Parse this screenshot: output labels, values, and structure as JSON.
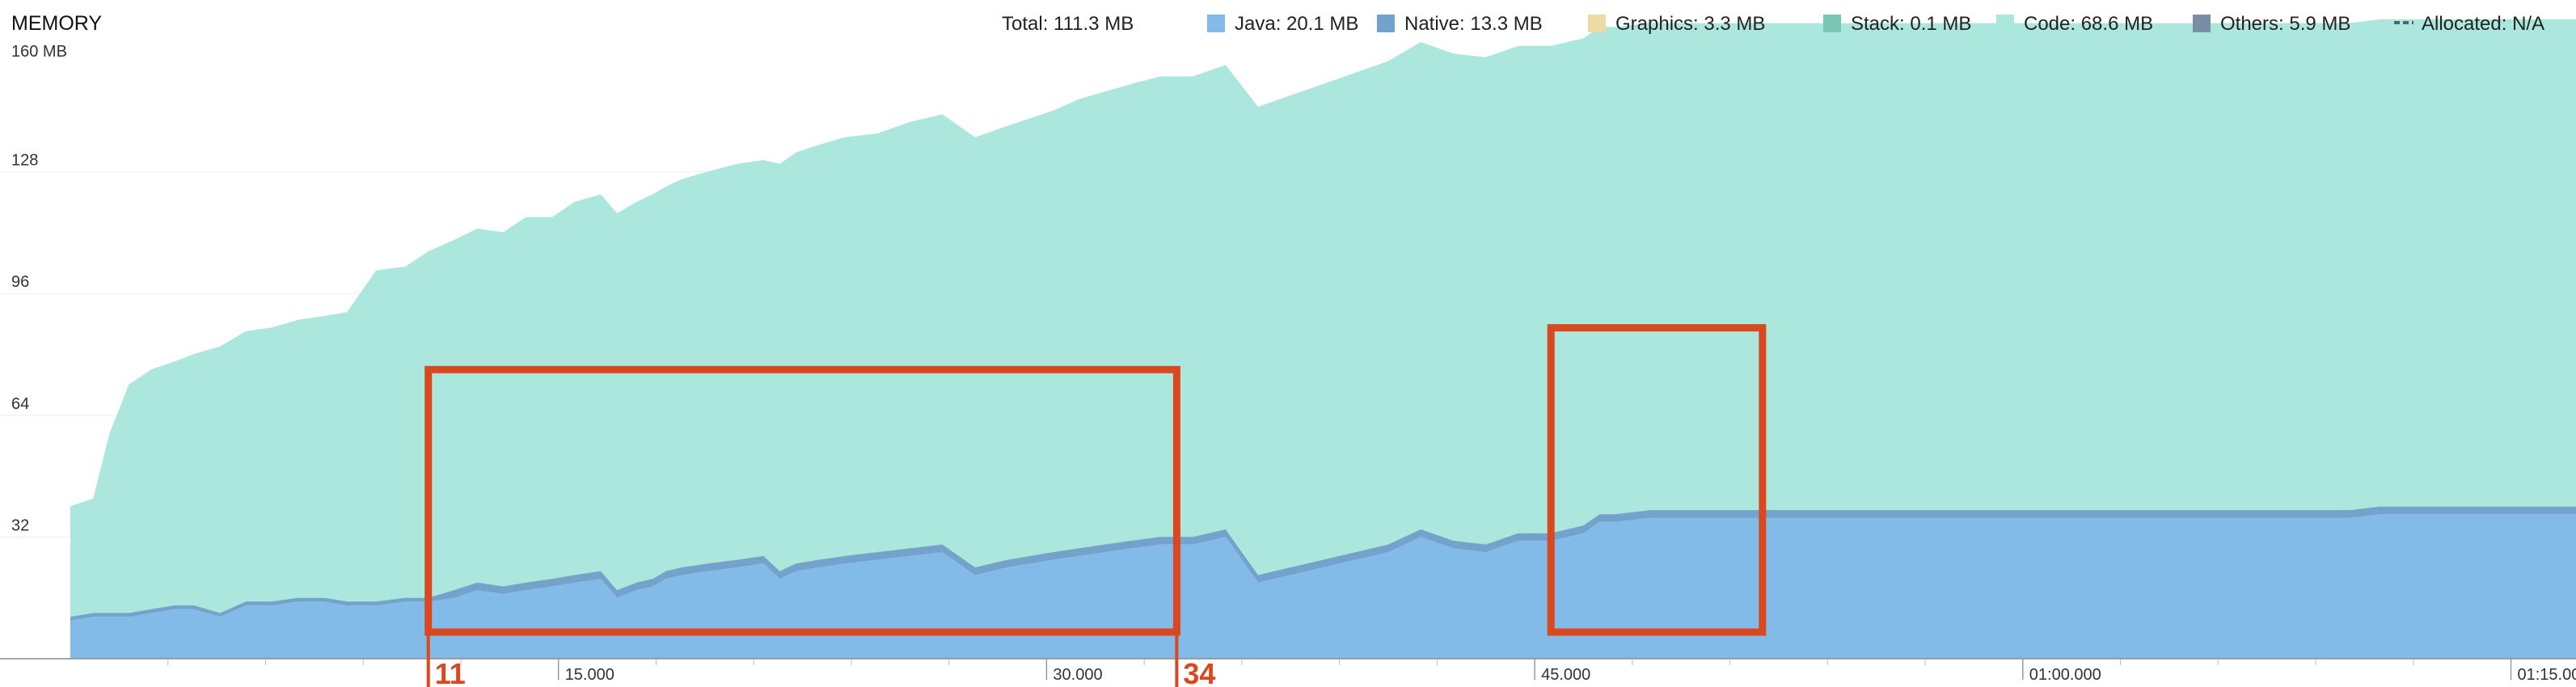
{
  "chart_data": {
    "type": "area",
    "title": "MEMORY",
    "legend_position": "top-right",
    "legend": {
      "total": "Total: 111.3 MB",
      "items": [
        {
          "key": "java",
          "label": "Java: 20.1 MB",
          "color": "#82bbe8",
          "swatch": "box"
        },
        {
          "key": "native",
          "label": "Native: 13.3 MB",
          "color": "#73a2cd",
          "swatch": "box"
        },
        {
          "key": "graphics",
          "label": "Graphics: 3.3 MB",
          "color": "#ecdba5",
          "swatch": "box"
        },
        {
          "key": "stack",
          "label": "Stack: 0.1 MB",
          "color": "#7bc5b3",
          "swatch": "box"
        },
        {
          "key": "code",
          "label": "Code: 68.6 MB",
          "color": "#abe7dc",
          "swatch": "box"
        },
        {
          "key": "others",
          "label": "Others: 5.9 MB",
          "color": "#7a8ea3",
          "swatch": "box"
        },
        {
          "key": "allocated",
          "label": "Allocated: N/A",
          "color": "#4c6478",
          "swatch": "dash"
        }
      ]
    },
    "y_unit_label": "160 MB",
    "y_ticks": [
      {
        "value": 32,
        "label": "32"
      },
      {
        "value": 64,
        "label": "64"
      },
      {
        "value": 96,
        "label": "96"
      },
      {
        "value": 128,
        "label": "128"
      }
    ],
    "ylim": [
      0,
      160
    ],
    "xlim": [
      0,
      77
    ],
    "x_ticks": [
      {
        "value": 15,
        "label": "15.000"
      },
      {
        "value": 30,
        "label": "30.000"
      },
      {
        "value": 45,
        "label": "45.000"
      },
      {
        "value": 60,
        "label": "01:00.000"
      },
      {
        "value": 75,
        "label": "01:15.000"
      }
    ],
    "x_minor_ticks": [
      3,
      6,
      9,
      12,
      18,
      21,
      24,
      27,
      33,
      36,
      39,
      42,
      48,
      51,
      54,
      57,
      63,
      66,
      69,
      72
    ],
    "markers": [
      {
        "x": 11,
        "label": "11"
      },
      {
        "x": 34,
        "label": "34"
      }
    ],
    "highlight_boxes": [
      {
        "x0": 11,
        "x1": 34,
        "y0": 7,
        "y1": 76
      },
      {
        "x0": 45.5,
        "x1": 52,
        "y0": 7,
        "y1": 87
      }
    ],
    "x": [
      0,
      0.7,
      1.2,
      1.8,
      2.5,
      3.2,
      3.8,
      4.6,
      5.4,
      6.2,
      7,
      7.8,
      8.5,
      9.4,
      10.3,
      11,
      11.8,
      12.5,
      13.3,
      14,
      14.8,
      15.5,
      16.3,
      16.8,
      17.4,
      17.9,
      18.3,
      18.8,
      19.6,
      20.5,
      21.3,
      21.8,
      22.3,
      23,
      23.8,
      24.8,
      25.8,
      26.8,
      27.8,
      28.8,
      29.5,
      30.2,
      31,
      31.8,
      32.6,
      33.5,
      34.5,
      35.5,
      36.5,
      37.5,
      38.5,
      39.5,
      40.5,
      41.5,
      42.5,
      43.5,
      44.5,
      45.5,
      46.5,
      47,
      47.5,
      48.5,
      49.5,
      50.5,
      51.2,
      51.6,
      52.5,
      53.5,
      54.5,
      55.5,
      56.5,
      57.5,
      58.5,
      59.5,
      60.2,
      60.5,
      61.2,
      62,
      63,
      64,
      65,
      66,
      67,
      68,
      68.4,
      68.8,
      69.3,
      70,
      71,
      72,
      73,
      74,
      75,
      76,
      77
    ],
    "series": [
      {
        "name": "Java",
        "key": "java",
        "color": "#82bbe8",
        "values": [
          10,
          11,
          11,
          11,
          12,
          13,
          13,
          11,
          14,
          14,
          15,
          15,
          14,
          14,
          15,
          15,
          16,
          18,
          17,
          18,
          19,
          20,
          21,
          16,
          18,
          19,
          21,
          22,
          23,
          24,
          25,
          21,
          23,
          24,
          25,
          26,
          27,
          28,
          22,
          24,
          25,
          26,
          27,
          28,
          29,
          30,
          30,
          32,
          20,
          22,
          24,
          26,
          28,
          32,
          29,
          28,
          31,
          31,
          33,
          36,
          36,
          37,
          37,
          37,
          37,
          37,
          37,
          37,
          37,
          37,
          37,
          37,
          37,
          37,
          37,
          37,
          37,
          37,
          37,
          37,
          37,
          37,
          37,
          37,
          37,
          37,
          37,
          37,
          38,
          38,
          38,
          38,
          38,
          38,
          38
        ]
      },
      {
        "name": "Native",
        "key": "native",
        "color": "#73a2cd",
        "values": [
          1,
          1,
          1,
          1,
          1,
          1,
          1,
          1,
          1,
          1,
          1,
          1,
          1,
          1,
          1,
          1,
          2,
          2,
          2,
          2,
          2,
          2,
          2,
          2,
          2,
          2,
          2,
          2,
          2,
          2,
          2,
          2,
          2,
          2,
          2,
          2,
          2,
          2,
          2,
          2,
          2,
          2,
          2,
          2,
          2,
          2,
          2,
          2,
          2,
          2,
          2,
          2,
          2,
          2,
          2,
          2,
          2,
          2,
          2,
          2,
          2,
          2,
          2,
          2,
          2,
          2,
          2,
          2,
          2,
          2,
          2,
          2,
          2,
          2,
          2,
          2,
          2,
          2,
          2,
          2,
          2,
          2,
          2,
          2,
          2,
          2,
          2,
          2,
          2,
          2,
          2,
          2,
          2,
          2,
          2
        ]
      },
      {
        "name": "Graphics",
        "key": "graphics",
        "color": "#ecdba5",
        "values": [
          0,
          0,
          0,
          0,
          0,
          0,
          0,
          0,
          0,
          0,
          0,
          0,
          0,
          0,
          0,
          0,
          0,
          0,
          0,
          0,
          0,
          0,
          0,
          0,
          0,
          0,
          0,
          0,
          0,
          0,
          0,
          0,
          0,
          0,
          0,
          0,
          0,
          0,
          0,
          0,
          0,
          0,
          0,
          0,
          0,
          0,
          0,
          0,
          0,
          0,
          0,
          0,
          0,
          0,
          0,
          0,
          0,
          0,
          0,
          0,
          0,
          0,
          0,
          0,
          0,
          0,
          0,
          0,
          0,
          0,
          0,
          0,
          0,
          0,
          0,
          0,
          0,
          0,
          0,
          0,
          0,
          0,
          0,
          0,
          0,
          0,
          0,
          0,
          0,
          0,
          0,
          0,
          0,
          0,
          0
        ]
      },
      {
        "name": "Stack",
        "key": "stack",
        "color": "#7bc5b3",
        "values": [
          0.1,
          0.1,
          0.1,
          0.1,
          0.1,
          0.1,
          0.1,
          0.1,
          0.1,
          0.1,
          0.1,
          0.1,
          0.1,
          0.1,
          0.1,
          0.1,
          0.1,
          0.1,
          0.1,
          0.1,
          0.1,
          0.1,
          0.1,
          0.1,
          0.1,
          0.1,
          0.1,
          0.1,
          0.1,
          0.1,
          0.1,
          0.1,
          0.1,
          0.1,
          0.1,
          0.1,
          0.1,
          0.1,
          0.1,
          0.1,
          0.1,
          0.1,
          0.1,
          0.1,
          0.1,
          0.1,
          0.1,
          0.1,
          0.1,
          0.1,
          0.1,
          0.1,
          0.1,
          0.1,
          0.1,
          0.1,
          0.1,
          0.1,
          0.1,
          0.1,
          0.1,
          0.1,
          0.1,
          0.1,
          0.1,
          0.1,
          0.1,
          0.1,
          0.1,
          0.1,
          0.1,
          0.1,
          0.1,
          0.1,
          0.1,
          0.1,
          0.1,
          0.1,
          0.1,
          0.1,
          0.1,
          0.1,
          0.1,
          0.1,
          0.1,
          0.1,
          0.1,
          0.1,
          0.1,
          0.1,
          0.1,
          0.1,
          0.1,
          0.1,
          0.1
        ]
      },
      {
        "name": "Code",
        "key": "code",
        "color": "#abe7dc",
        "values": [
          29,
          30,
          47,
          60,
          63,
          64,
          66,
          70,
          71,
          72,
          73,
          74,
          76,
          87,
          87,
          91,
          92,
          93,
          93,
          96,
          95,
          98,
          99,
          99,
          100,
          101,
          101,
          102,
          103,
          104,
          104,
          107,
          108,
          109,
          110,
          110,
          112,
          113,
          113,
          114,
          115,
          116,
          118,
          119,
          120,
          121,
          121,
          122,
          123,
          124,
          125,
          126,
          127,
          128,
          128,
          128,
          128,
          128,
          128,
          128,
          128,
          128,
          128,
          128,
          128,
          128,
          128,
          128,
          128,
          128,
          128,
          128,
          128,
          128,
          128,
          128,
          128,
          128,
          128,
          128,
          128,
          128,
          128,
          128,
          128,
          128,
          128,
          128,
          128,
          128,
          128,
          128,
          128,
          128,
          128
        ]
      },
      {
        "name": "Others",
        "key": "others",
        "color": "#7a8ea3",
        "values": [
          0,
          0,
          0,
          0,
          0,
          0,
          0,
          0,
          0,
          0,
          0,
          0,
          0,
          0,
          0,
          0,
          0,
          0,
          0,
          0,
          0,
          0,
          0,
          0,
          0,
          0,
          0,
          0,
          0,
          0,
          0,
          0,
          0,
          0,
          0,
          0,
          0,
          0,
          0,
          0,
          0,
          0,
          0,
          0,
          0,
          0,
          0,
          0,
          0,
          0,
          0,
          0,
          0,
          0,
          0,
          0,
          0,
          0,
          0,
          0,
          0,
          0,
          0,
          0,
          0,
          0,
          0,
          0,
          0,
          0,
          0,
          0,
          0,
          0,
          0,
          0,
          0,
          0,
          0,
          0,
          0,
          0,
          0,
          0,
          0,
          0,
          0,
          0,
          0,
          0,
          0,
          0,
          0,
          0,
          0
        ]
      }
    ]
  }
}
